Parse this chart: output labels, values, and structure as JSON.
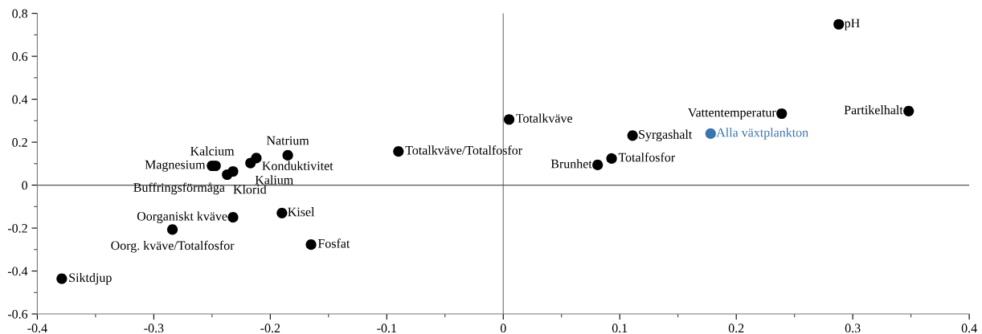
{
  "chart_data": {
    "type": "scatter",
    "marker": "circle",
    "grid": false,
    "legend": false,
    "xlim": [
      -0.4,
      0.4
    ],
    "xticks": [
      -0.4,
      -0.3,
      -0.2,
      -0.1,
      0,
      0.1,
      0.2,
      0.3,
      0.4
    ],
    "ylim": [
      -0.6,
      0.8
    ],
    "yticks": [
      -0.6,
      -0.4,
      -0.2,
      0,
      0.2,
      0.4,
      0.6,
      0.8
    ],
    "ref_lines": [
      {
        "axis": "x",
        "value": 0,
        "color": "#8a8a8a"
      },
      {
        "axis": "y",
        "value": 0,
        "color": "#555555"
      }
    ],
    "series": [
      {
        "name": "pH",
        "color": "#000000",
        "x": [
          0.288
        ],
        "values": [
          0.749
        ]
      },
      {
        "name": "Partikelhalt",
        "color": "#000000",
        "x": [
          0.348
        ],
        "values": [
          0.345
        ]
      },
      {
        "name": "Vattentemperatur",
        "color": "#000000",
        "x": [
          0.239
        ],
        "values": [
          0.333
        ]
      },
      {
        "name": "Alla växtplankton",
        "color": "#3b75af",
        "x": [
          0.178
        ],
        "values": [
          0.24
        ]
      },
      {
        "name": "Syrgashalt",
        "color": "#000000",
        "x": [
          0.111
        ],
        "values": [
          0.231
        ]
      },
      {
        "name": "Totalkväve",
        "color": "#000000",
        "x": [
          0.005
        ],
        "values": [
          0.306
        ]
      },
      {
        "name": "Totalfosfor",
        "color": "#000000",
        "x": [
          0.093
        ],
        "values": [
          0.124
        ]
      },
      {
        "name": "Brunhet",
        "color": "#000000",
        "x": [
          0.081
        ],
        "values": [
          0.094
        ]
      },
      {
        "name": "Totalkväve/Totalfosfor",
        "color": "#000000",
        "x": [
          -0.09
        ],
        "values": [
          0.157
        ]
      },
      {
        "name": "Natrium",
        "color": "#000000",
        "x": [
          -0.185
        ],
        "values": [
          0.139
        ]
      },
      {
        "name": "Konduktivitet",
        "color": "#000000",
        "x": [
          -0.212
        ],
        "values": [
          0.126
        ]
      },
      {
        "name": "Kalium",
        "color": "#000000",
        "x": [
          -0.217
        ],
        "values": [
          0.103
        ]
      },
      {
        "name": "Klorid",
        "color": "#000000",
        "x": [
          -0.232
        ],
        "values": [
          0.064
        ]
      },
      {
        "name": "Kalcium",
        "color": "#000000",
        "x": [
          -0.247
        ],
        "values": [
          0.09
        ]
      },
      {
        "name": "Magnesium",
        "color": "#000000",
        "x": [
          -0.25
        ],
        "values": [
          0.09
        ]
      },
      {
        "name": "Buffringsförmåga",
        "color": "#000000",
        "x": [
          -0.237
        ],
        "values": [
          0.049
        ]
      },
      {
        "name": "Oorganiskt kväve",
        "color": "#000000",
        "x": [
          -0.232
        ],
        "values": [
          -0.15
        ]
      },
      {
        "name": "Oorg. kväve/Totalfosfor",
        "color": "#000000",
        "x": [
          -0.284
        ],
        "values": [
          -0.207
        ]
      },
      {
        "name": "Kisel",
        "color": "#000000",
        "x": [
          -0.19
        ],
        "values": [
          -0.13
        ]
      },
      {
        "name": "Fosfat",
        "color": "#000000",
        "x": [
          -0.165
        ],
        "values": [
          -0.277
        ]
      },
      {
        "name": "Siktdjup",
        "color": "#000000",
        "x": [
          -0.379
        ],
        "values": [
          -0.436
        ]
      }
    ]
  }
}
